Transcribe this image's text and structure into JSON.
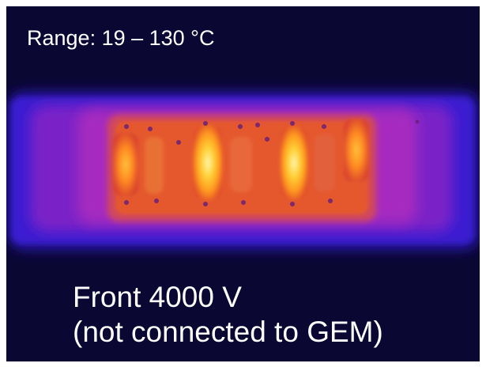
{
  "image": {
    "range_label": "Range: 19 – 130 °C",
    "caption_line1": "Front 4000 V",
    "caption_line2": "(not connected to GEM)",
    "colors": {
      "background": "#0a0733",
      "board_cool": "#3a1ad0",
      "board_warm": "#9a22c8",
      "hot_region": "#e8452a",
      "hotspot": "#ffd23a",
      "peak": "#fff6b0",
      "text": "#ffffff"
    }
  }
}
